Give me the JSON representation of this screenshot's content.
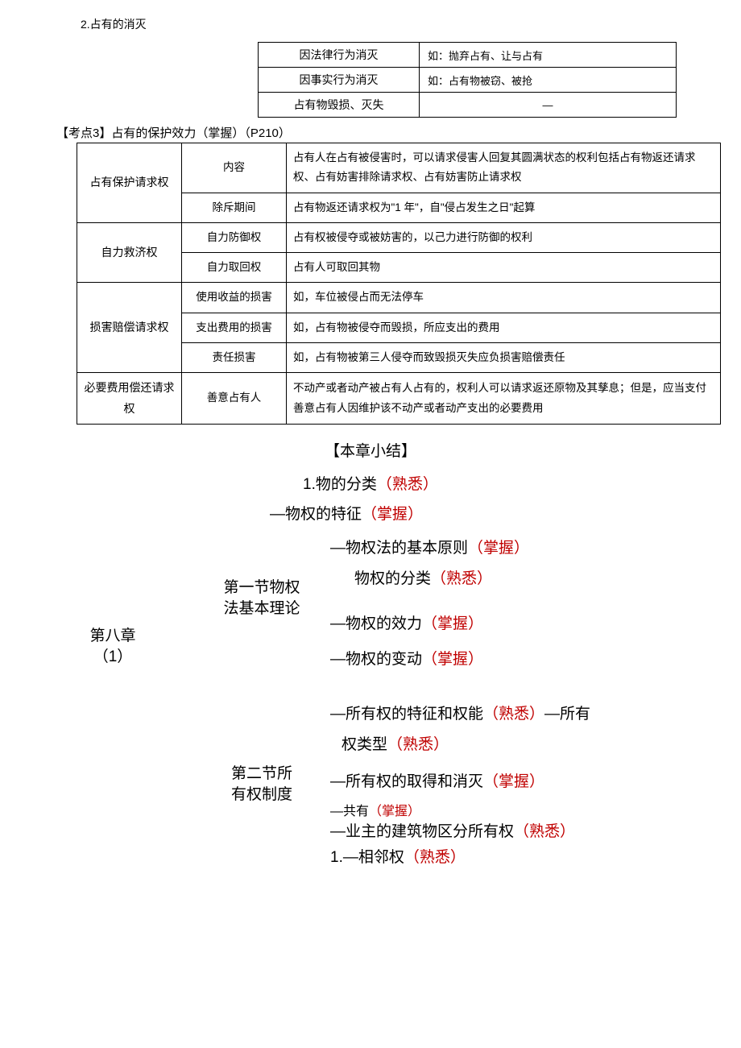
{
  "section2_title": "2.占有的消灭",
  "table1": {
    "rows": [
      {
        "cause": "因法律行为消灭",
        "example": "如：抛弃占有、让与占有"
      },
      {
        "cause": "因事实行为消灭",
        "example": "如：占有物被窃、被抢"
      },
      {
        "cause": "占有物毁损、灭失",
        "example": "—"
      }
    ]
  },
  "keypoint3": "【考点3】占有的保护效力（掌握）（P210）",
  "table2": {
    "groups": [
      {
        "name": "占有保护请求权",
        "rows": [
          {
            "sub": "内容",
            "detail": "占有人在占有被侵害时，可以请求侵害人回复其圆满状态的权利包括占有物返还请求权、占有妨害排除请求权、占有妨害防止请求权"
          },
          {
            "sub": "除斥期间",
            "detail": "占有物返还请求权为\"1 年\"，自\"侵占发生之日\"起算"
          }
        ]
      },
      {
        "name": "自力救济权",
        "rows": [
          {
            "sub": "自力防御权",
            "detail": "占有权被侵夺或被妨害的，以己力进行防御的权利"
          },
          {
            "sub": "自力取回权",
            "detail": "占有人可取回其物"
          }
        ]
      },
      {
        "name": "损害赔偿请求权",
        "rows": [
          {
            "sub": "使用收益的损害",
            "detail": "如，车位被侵占而无法停车"
          },
          {
            "sub": "支出费用的损害",
            "detail": "如，占有物被侵夺而毁损，所应支出的费用"
          },
          {
            "sub": "责任损害",
            "detail": "如，占有物被第三人侵夺而致毁损灭失应负损害赔偿责任"
          }
        ]
      },
      {
        "name": "必要费用偿还请求权",
        "rows": [
          {
            "sub": "善意占有人",
            "detail": "不动产或者动产被占有人占有的，权利人可以请求返还原物及其孳息；但是，应当支付善意占有人因维护该不动产或者动产支出的必要费用"
          }
        ]
      }
    ]
  },
  "summary_title": "【本章小结】",
  "outline": {
    "top_items": [
      {
        "prefix": "1.",
        "text": "物的分类",
        "tag": "（熟悉）"
      },
      {
        "prefix": "—",
        "text": "物权的特征",
        "tag": "（掌握）"
      }
    ],
    "chapter": "第八章",
    "chapter_sub": "（1）",
    "section1": {
      "label1": "第一节物权",
      "label2": "法基本理论",
      "items": [
        {
          "prefix": "—",
          "text": "物权法的基本原则",
          "tag": "（掌握）"
        },
        {
          "prefix": "",
          "text": "物权的分类",
          "tag": "（熟悉）"
        },
        {
          "prefix": "—",
          "text": "物权的效力",
          "tag": "（掌握）"
        },
        {
          "prefix": "—",
          "text": "物权的变动",
          "tag": "（掌握）"
        }
      ]
    },
    "section2": {
      "label1": "第二节所",
      "label2": "有权制度",
      "items": [
        {
          "prefix": "—",
          "text": "所有权的特征和权能",
          "tag": "（熟悉）",
          "suffix_prefix": "—",
          "suffix_text": "所有"
        },
        {
          "prefix": "",
          "text": "权类型",
          "tag": "（熟悉）",
          "indent": true
        },
        {
          "prefix": "—",
          "text": "所有权的取得和消灭",
          "tag": "（掌握）"
        },
        {
          "prefix": "—",
          "text": "共有",
          "tag": "（掌握）",
          "strike": true
        },
        {
          "prefix": "—",
          "text": "业主的建筑物区分所有权",
          "tag": "（熟悉）"
        },
        {
          "prefix": "1.—",
          "text": "相邻权",
          "tag": "（熟悉）"
        }
      ]
    }
  },
  "colors": {
    "red": "#c00000",
    "text": "#000000",
    "bg": "#ffffff",
    "border": "#000000"
  }
}
